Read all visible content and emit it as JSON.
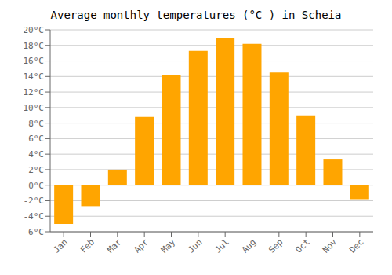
{
  "chart_data": {
    "type": "bar",
    "title": "Average monthly temperatures (°C ) in Scheia",
    "categories": [
      "Jan",
      "Feb",
      "Mar",
      "Apr",
      "May",
      "Jun",
      "Jul",
      "Aug",
      "Sep",
      "Oct",
      "Nov",
      "Dec"
    ],
    "values": [
      -5.0,
      -2.7,
      2.0,
      8.8,
      14.2,
      17.3,
      19.0,
      18.2,
      14.5,
      9.0,
      3.3,
      -1.8
    ],
    "color": "#FFA500",
    "ylim": [
      -6,
      20
    ],
    "yticks": [
      {
        "value": -6,
        "label": "-6°C"
      },
      {
        "value": -4,
        "label": "-4°C"
      },
      {
        "value": -2,
        "label": "-2°C"
      },
      {
        "value": 0,
        "label": "0°C"
      },
      {
        "value": 2,
        "label": "2°C"
      },
      {
        "value": 4,
        "label": "4°C"
      },
      {
        "value": 6,
        "label": "6°C"
      },
      {
        "value": 8,
        "label": "8°C"
      },
      {
        "value": 10,
        "label": "10°C"
      },
      {
        "value": 12,
        "label": "12°C"
      },
      {
        "value": 14,
        "label": "14°C"
      },
      {
        "value": 16,
        "label": "16°C"
      },
      {
        "value": 18,
        "label": "18°C"
      },
      {
        "value": 20,
        "label": "20°C"
      }
    ],
    "grid": true
  }
}
